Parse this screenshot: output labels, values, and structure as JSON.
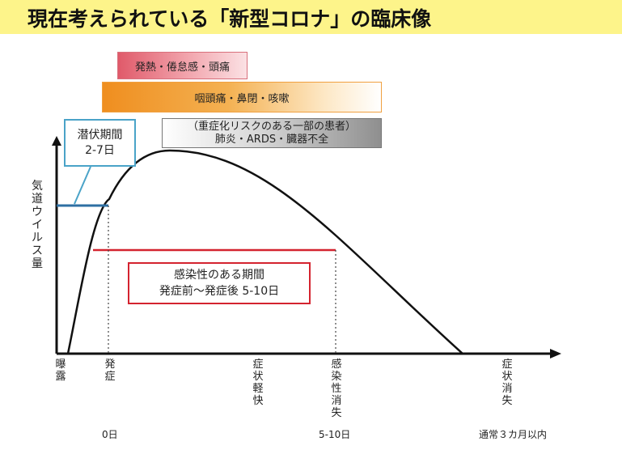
{
  "title": "現在考えられている「新型コロナ」の臨床像",
  "bars": {
    "fever": "発熱・倦怠感・頭痛",
    "throat": "咽頭痛・鼻閉・咳嗽",
    "severe_line1": "（重症化リスクのある一部の患者）",
    "severe_line2": "肺炎・ARDS・臓器不全"
  },
  "incubation": {
    "line1": "潜伏期間",
    "line2": "2-7日"
  },
  "infectious": {
    "line1": "感染性のある期間",
    "line2": "発症前〜発症後 5-10日"
  },
  "y_axis_label": "気道ウイルス量",
  "stages": {
    "exposure": "曝露",
    "onset": "発症",
    "relief": "症状軽快",
    "no_infectivity": "感染性消失",
    "recovery": "症状消失"
  },
  "ticks": {
    "day0": "0日",
    "day5_10": "5-10日",
    "three_months": "通常３カ月以内"
  },
  "colors": {
    "title_bg": "#fdf48a",
    "fever": "#e05a6a",
    "throat": "#ef8e1f",
    "severe": "#8f8f8f",
    "incubation": "#4aa3c8",
    "infectious": "#d4232f"
  }
}
